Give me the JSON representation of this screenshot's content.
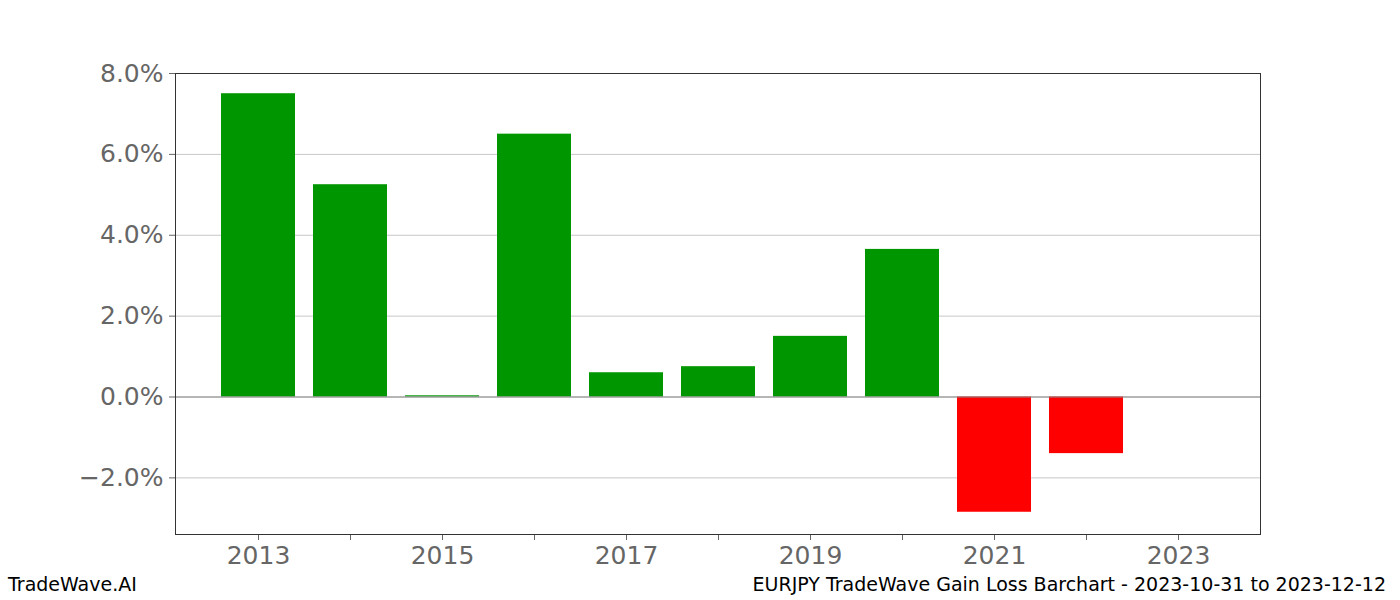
{
  "chart_data": {
    "type": "bar",
    "title": "EURJPY TradeWave Gain Loss Barchart - 2023-10-31 to 2023-12-12",
    "source": "TradeWave.AI",
    "categories": [
      "2013",
      null,
      "2015",
      null,
      "2017",
      null,
      "2019",
      null,
      "2021",
      null,
      "2023"
    ],
    "values": [
      7.5,
      5.25,
      0.03,
      6.5,
      0.6,
      0.75,
      1.5,
      3.65,
      -2.85,
      -1.4,
      0
    ],
    "colors": [
      "#009600",
      "#009600",
      "#009600",
      "#009600",
      "#009600",
      "#009600",
      "#009600",
      "#009600",
      "#ff0000",
      "#ff0000",
      "#009600"
    ],
    "ylim": [
      -3.4,
      8.0
    ],
    "yticks": [
      {
        "value": -2,
        "label": "−2.0%"
      },
      {
        "value": 0,
        "label": "0.0%"
      },
      {
        "value": 2,
        "label": "2.0%"
      },
      {
        "value": 4,
        "label": "4.0%"
      },
      {
        "value": 6,
        "label": "6.0%"
      },
      {
        "value": 8,
        "label": "8.0%"
      }
    ],
    "grid": true
  }
}
